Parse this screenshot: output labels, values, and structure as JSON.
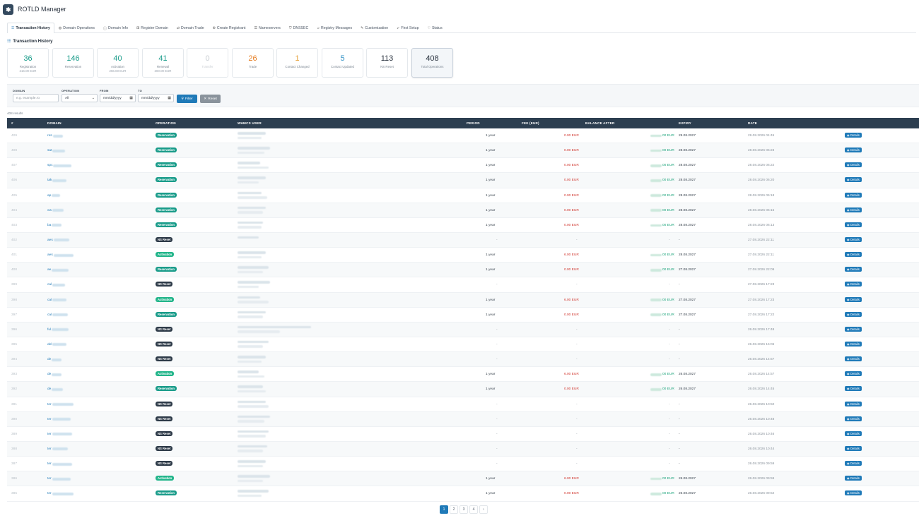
{
  "app": {
    "title": "ROTLD Manager",
    "logo_icon": "gear-icon"
  },
  "tabs": [
    {
      "label": "Transaction History",
      "icon": "history-icon",
      "active": true,
      "glyph": "☷"
    },
    {
      "label": "Domain Operations",
      "icon": "globe-icon",
      "glyph": "◍"
    },
    {
      "label": "Domain Info",
      "icon": "info-icon",
      "glyph": "ⓘ"
    },
    {
      "label": "Register Domain",
      "icon": "plus-square-icon",
      "glyph": "⊞"
    },
    {
      "label": "Domain Trade",
      "icon": "exchange-icon",
      "glyph": "⇄"
    },
    {
      "label": "Create Registrant",
      "icon": "user-plus-icon",
      "glyph": "⊕"
    },
    {
      "label": "Nameservers",
      "icon": "server-icon",
      "glyph": "☰"
    },
    {
      "label": "DNSSEC",
      "icon": "shield-icon",
      "glyph": "⛉"
    },
    {
      "label": "Registry Messages",
      "icon": "bell-icon",
      "glyph": "♫"
    },
    {
      "label": "Customization",
      "icon": "brush-icon",
      "glyph": "✎"
    },
    {
      "label": "First Setup",
      "icon": "rocket-icon",
      "glyph": "➶"
    },
    {
      "label": "Status",
      "icon": "heartbeat-icon",
      "glyph": "♡"
    }
  ],
  "section": {
    "title": "Transaction History",
    "icon": "history-icon"
  },
  "stats": [
    {
      "value": "36",
      "label": "Registration",
      "sub": "216.00 EUR",
      "color": "#1a9c8a"
    },
    {
      "value": "146",
      "label": "Reservation",
      "sub": "",
      "color": "#1a9c8a"
    },
    {
      "value": "40",
      "label": "Activation",
      "sub": "256.00 EUR",
      "color": "#1a9c8a"
    },
    {
      "value": "41",
      "label": "Renewal",
      "sub": "300.00 EUR",
      "color": "#1a9c8a"
    },
    {
      "value": "0",
      "label": "Transfer",
      "sub": "",
      "color": "#c8cdd2",
      "faded": true
    },
    {
      "value": "26",
      "label": "Trade",
      "sub": "",
      "color": "#e67e22"
    },
    {
      "value": "1",
      "label": "Contact Changed",
      "sub": "",
      "color": "#e6a23c"
    },
    {
      "value": "5",
      "label": "Contact Updated",
      "sub": "",
      "color": "#2d8fc4"
    },
    {
      "value": "113",
      "label": "NS Reset",
      "sub": "",
      "color": "#2b3440"
    },
    {
      "value": "408",
      "label": "Total Operations",
      "sub": "",
      "color": "#2b3440",
      "active": true
    }
  ],
  "filters": {
    "domain_label": "DOMAIN",
    "domain_placeholder": "e.g. example.ro",
    "operation_label": "OPERATION",
    "operation_value": "All",
    "from_label": "FROM",
    "from_placeholder": "mm/dd/yyyy",
    "to_label": "TO",
    "to_placeholder": "mm/dd/yyyy",
    "filter_button": "Filter",
    "reset_button": "Reset"
  },
  "results_text": "408 results",
  "table": {
    "headers": [
      "#",
      "DOMAIN",
      "OPERATION",
      "WHMCS USER",
      "PERIOD",
      "FEE (EUR)",
      "BALANCE AFTER",
      "EXPIRY",
      "DATE"
    ],
    "details_label": "Details",
    "rows": [
      {
        "id": "409",
        "dom": "res",
        "op": "Reservation",
        "period": "1 year",
        "fee": "0.00 EUR",
        "bal": "00 EUR",
        "expiry": "29.08.2027",
        "date": "29.08.2026 04:45"
      },
      {
        "id": "408",
        "dom": "sat",
        "op": "Reservation",
        "period": "1 year",
        "fee": "0.00 EUR",
        "bal": "00 EUR",
        "expiry": "28.08.2027",
        "date": "28.08.2026 06:23"
      },
      {
        "id": "407",
        "dom": "spc",
        "op": "Reservation",
        "period": "1 year",
        "fee": "0.00 EUR",
        "bal": "00 EUR",
        "expiry": "28.08.2027",
        "date": "28.08.2026 06:22"
      },
      {
        "id": "406",
        "dom": "tak",
        "op": "Reservation",
        "period": "1 year",
        "fee": "0.00 EUR",
        "bal": "00 EUR",
        "expiry": "28.08.2027",
        "date": "28.08.2026 06:20"
      },
      {
        "id": "405",
        "dom": "ap",
        "op": "Reservation",
        "period": "1 year",
        "fee": "0.00 EUR",
        "bal": "00 EUR",
        "expiry": "28.08.2027",
        "date": "28.08.2026 06:18"
      },
      {
        "id": "404",
        "dom": "ws",
        "op": "Reservation",
        "period": "1 year",
        "fee": "0.00 EUR",
        "bal": "00 EUR",
        "expiry": "28.08.2027",
        "date": "28.08.2026 06:15"
      },
      {
        "id": "403",
        "dom": "ba",
        "op": "Reservation",
        "period": "1 year",
        "fee": "0.00 EUR",
        "bal": "00 EUR",
        "expiry": "28.08.2027",
        "date": "28.08.2026 06:13"
      },
      {
        "id": "402",
        "dom": "aes",
        "op": "NS Reset",
        "period": "-",
        "fee": "-",
        "bal": "-",
        "expiry": "-",
        "date": "27.08.2026 22:11"
      },
      {
        "id": "401",
        "dom": "aes",
        "op": "Activation",
        "period": "1 year",
        "fee": "6.00 EUR",
        "bal": "00 EUR",
        "expiry": "28.08.2027",
        "date": "27.08.2026 22:11"
      },
      {
        "id": "400",
        "dom": "ae",
        "op": "Reservation",
        "period": "1 year",
        "fee": "0.00 EUR",
        "bal": "00 EUR",
        "expiry": "27.08.2027",
        "date": "27.08.2026 22:09"
      },
      {
        "id": "399",
        "dom": "cal",
        "op": "NS Reset",
        "period": "-",
        "fee": "-",
        "bal": "-",
        "expiry": "-",
        "date": "27.08.2026 17:23"
      },
      {
        "id": "398",
        "dom": "cal",
        "op": "Activation",
        "period": "1 year",
        "fee": "6.00 EUR",
        "bal": "00 EUR",
        "expiry": "27.08.2027",
        "date": "27.08.2026 17:23"
      },
      {
        "id": "397",
        "dom": "cal",
        "op": "Reservation",
        "period": "1 year",
        "fee": "0.00 EUR",
        "bal": "00 EUR",
        "expiry": "27.08.2027",
        "date": "27.08.2026 17:22"
      },
      {
        "id": "396",
        "dom": "ful",
        "op": "NS Reset",
        "period": "-",
        "fee": "-",
        "bal": "-",
        "expiry": "-",
        "date": "26.08.2026 17:48"
      },
      {
        "id": "395",
        "dom": "del",
        "op": "NS Reset",
        "period": "-",
        "fee": "-",
        "bal": "-",
        "expiry": "-",
        "date": "26.08.2026 15:06"
      },
      {
        "id": "394",
        "dom": "de",
        "op": "NS Reset",
        "period": "-",
        "fee": "-",
        "bal": "-",
        "expiry": "-",
        "date": "26.08.2026 14:57"
      },
      {
        "id": "393",
        "dom": "de",
        "op": "Activation",
        "period": "1 year",
        "fee": "6.00 EUR",
        "bal": "00 EUR",
        "expiry": "26.08.2027",
        "date": "26.08.2026 14:57"
      },
      {
        "id": "392",
        "dom": "de",
        "op": "Reservation",
        "period": "1 year",
        "fee": "0.00 EUR",
        "bal": "00 EUR",
        "expiry": "26.08.2027",
        "date": "26.08.2026 14:45"
      },
      {
        "id": "391",
        "dom": "ter",
        "op": "NS Reset",
        "period": "-",
        "fee": "-",
        "bal": "-",
        "expiry": "-",
        "date": "26.08.2026 10:50"
      },
      {
        "id": "390",
        "dom": "ter",
        "op": "NS Reset",
        "period": "-",
        "fee": "-",
        "bal": "-",
        "expiry": "-",
        "date": "26.08.2026 10:48"
      },
      {
        "id": "389",
        "dom": "ter",
        "op": "NS Reset",
        "period": "-",
        "fee": "-",
        "bal": "-",
        "expiry": "-",
        "date": "26.08.2026 10:46"
      },
      {
        "id": "388",
        "dom": "ter",
        "op": "NS Reset",
        "period": "-",
        "fee": "-",
        "bal": "-",
        "expiry": "-",
        "date": "26.08.2026 10:44"
      },
      {
        "id": "387",
        "dom": "ter",
        "op": "NS Reset",
        "period": "-",
        "fee": "-",
        "bal": "-",
        "expiry": "-",
        "date": "26.08.2026 09:59"
      },
      {
        "id": "386",
        "dom": "ter",
        "op": "Activation",
        "period": "1 year",
        "fee": "6.00 EUR",
        "bal": "00 EUR",
        "expiry": "26.08.2027",
        "date": "26.08.2026 09:59"
      },
      {
        "id": "385",
        "dom": "ter",
        "op": "Reservation",
        "period": "1 year",
        "fee": "0.00 EUR",
        "bal": "00 EUR",
        "expiry": "26.08.2027",
        "date": "26.08.2026 09:52"
      }
    ]
  },
  "pagination": {
    "pages": [
      "1",
      "2",
      "3",
      "4"
    ],
    "active": "1",
    "next": "›"
  },
  "colors": {
    "accent": "#1f7ab8",
    "header_dark": "#2c3e50",
    "reservation": "#1a9c8a",
    "activation": "#22b58a",
    "ns_reset": "#2d3a48",
    "fee_red": "#d0342c"
  }
}
